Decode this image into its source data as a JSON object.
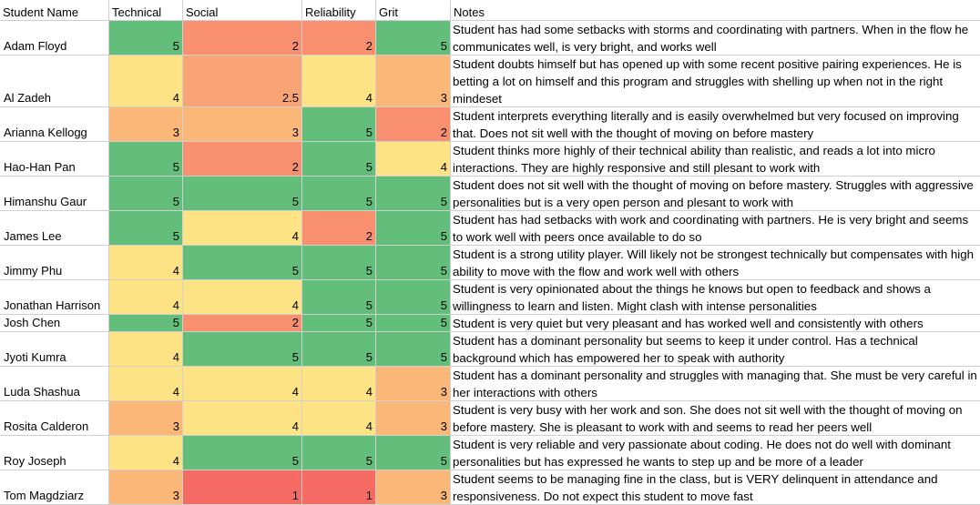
{
  "header": {
    "name": "Student Name",
    "technical": "Technical",
    "social": "Social",
    "reliability": "Reliability",
    "grit": "Grit",
    "notes": "Notes"
  },
  "scale_colors": {
    "1": "#f56a62",
    "2": "#f8906f",
    "2.5": "#f9a474",
    "3": "#fbb777",
    "4": "#fde383",
    "5": "#63be7b"
  },
  "rows": [
    {
      "name": "Adam Floyd",
      "technical": "5",
      "social": "2",
      "reliability": "2",
      "grit": "5",
      "notes": "Student has had some setbacks with storms and coordinating with partners. When in the flow he communicates well, is very bright, and works well"
    },
    {
      "name": "Al Zadeh",
      "technical": "4",
      "social": "2.5",
      "reliability": "4",
      "grit": "3",
      "notes": "Student doubts himself but has opened up with some recent positive pairing experiences. He is betting a lot on himself and this program and struggles with shelling up when not in the right mindeset"
    },
    {
      "name": "Arianna Kellogg",
      "technical": "3",
      "social": "3",
      "reliability": "5",
      "grit": "2",
      "notes": "Student interprets everything literally and is easily overwhelmed but very focused on improving that. Does not sit well with the thought of moving on before mastery"
    },
    {
      "name": "Hao-Han Pan",
      "technical": "5",
      "social": "2",
      "reliability": "5",
      "grit": "4",
      "notes": "Student thinks more highly of their technical ability than realistic, and reads a lot into micro interactions. They are highly responsive and still plesant to work with"
    },
    {
      "name": "Himanshu Gaur",
      "technical": "5",
      "social": "5",
      "reliability": "5",
      "grit": "5",
      "notes": "Student does not sit well with the thought of moving on before mastery. Struggles with aggressive personalities but is a very open person and plesant to work with"
    },
    {
      "name": "James Lee",
      "technical": "5",
      "social": "4",
      "reliability": "2",
      "grit": "5",
      "notes": "Student has had setbacks with work and coordinating with partners. He is very bright and seems to work well with peers once available to do so"
    },
    {
      "name": "Jimmy Phu",
      "technical": "4",
      "social": "5",
      "reliability": "5",
      "grit": "5",
      "notes": "Student is a strong utility player. Will likely not be strongest technically but compensates with high ability to move with the flow and work well with others"
    },
    {
      "name": "Jonathan Harrison",
      "technical": "4",
      "social": "4",
      "reliability": "5",
      "grit": "5",
      "notes": "Student is very opinionated about the things he knows but open to feedback and shows a willingness to learn and listen. Might clash with intense personalities"
    },
    {
      "name": "Josh Chen",
      "technical": "5",
      "social": "2",
      "reliability": "5",
      "grit": "5",
      "notes": "Student is very quiet but very pleasant and has worked well and consistently with others"
    },
    {
      "name": "Jyoti Kumra",
      "technical": "4",
      "social": "5",
      "reliability": "5",
      "grit": "5",
      "notes": "Student has a dominant personality but seems to keep it under control. Has a technical background which has empowered her to speak with authority"
    },
    {
      "name": "Luda Shashua",
      "technical": "4",
      "social": "4",
      "reliability": "4",
      "grit": "3",
      "notes": "Student  has a dominant personality and struggles with managing that. She must be very careful in her interactions with others"
    },
    {
      "name": "Rosita Calderon",
      "technical": "3",
      "social": "4",
      "reliability": "4",
      "grit": "3",
      "notes": "Student is very busy with her work and son. She does not sit well with the thought of moving on before mastery. She is pleasant to work with and seems to read her peers well"
    },
    {
      "name": "Roy Joseph",
      "technical": "4",
      "social": "5",
      "reliability": "5",
      "grit": "5",
      "notes": "Student is very reliable and very passionate about coding. He does not do well with dominant personalities but has expressed he wants to step up and be more of a leader"
    },
    {
      "name": "Tom Magdziarz",
      "technical": "3",
      "social": "1",
      "reliability": "1",
      "grit": "3",
      "notes": "Student seems to be managing fine in the class, but is VERY delinquent in attendance and responsiveness. Do not expect this student to move fast"
    }
  ]
}
